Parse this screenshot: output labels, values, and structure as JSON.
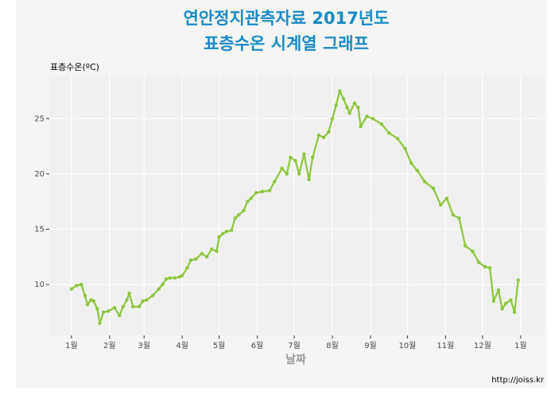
{
  "chart_data": {
    "type": "line",
    "title": "연안정지관측자료 2017년도",
    "subtitle": "표층수온 시계열 그래프",
    "y_label": "표층수온(ºC)",
    "x_label": "날짜",
    "caption": "http://joiss.kr",
    "color": "#8cc63e",
    "grid": true,
    "xlim": [
      -18,
      384.5
    ],
    "ylim": [
      5.4,
      28.9
    ],
    "xticks": [
      {
        "value": 0,
        "label": "1월"
      },
      {
        "value": 31,
        "label": "2월"
      },
      {
        "value": 59,
        "label": "3월"
      },
      {
        "value": 90,
        "label": "4월"
      },
      {
        "value": 120,
        "label": "5월"
      },
      {
        "value": 151,
        "label": "6월"
      },
      {
        "value": 181,
        "label": "7월"
      },
      {
        "value": 212,
        "label": "8월"
      },
      {
        "value": 243,
        "label": "9월"
      },
      {
        "value": 273,
        "label": "10월"
      },
      {
        "value": 304,
        "label": "11월"
      },
      {
        "value": 334,
        "label": "12월"
      },
      {
        "value": 365,
        "label": "1월"
      }
    ],
    "yticks": [
      10,
      15,
      20,
      25
    ],
    "x": [
      0,
      4,
      8,
      11,
      13,
      16,
      18,
      21,
      23,
      26,
      30,
      35,
      39,
      42,
      45,
      47,
      50,
      55,
      58,
      61,
      66,
      71,
      74,
      77,
      80,
      84,
      88,
      90,
      94,
      97,
      101,
      106,
      110,
      114,
      118,
      120,
      123,
      126,
      130,
      133,
      136,
      140,
      143,
      146,
      150,
      155,
      161,
      165,
      171,
      175,
      178,
      182,
      185,
      189,
      193,
      196,
      201,
      205,
      209,
      212,
      215,
      218,
      221,
      224,
      226,
      230,
      233,
      235,
      240,
      245,
      252,
      258,
      265,
      271,
      276,
      281,
      287,
      294,
      300,
      305,
      310,
      315,
      320,
      326,
      331,
      336,
      340,
      343,
      347,
      350,
      353,
      357,
      360,
      363
    ],
    "values": [
      9.6,
      9.9,
      10.0,
      9.0,
      8.2,
      8.6,
      8.5,
      7.8,
      6.5,
      7.5,
      7.6,
      7.9,
      7.2,
      8.0,
      8.6,
      9.2,
      8.0,
      8.0,
      8.5,
      8.6,
      9.0,
      9.6,
      10.0,
      10.5,
      10.6,
      10.6,
      10.7,
      10.8,
      11.5,
      12.2,
      12.3,
      12.8,
      12.5,
      13.2,
      13.0,
      14.3,
      14.6,
      14.8,
      14.9,
      16.0,
      16.3,
      16.7,
      17.5,
      17.8,
      18.3,
      18.4,
      18.5,
      19.3,
      20.5,
      20.0,
      21.5,
      21.2,
      20.0,
      21.8,
      19.5,
      21.5,
      23.5,
      23.3,
      23.8,
      25.0,
      26.2,
      27.5,
      26.8,
      26.0,
      25.5,
      26.4,
      26.0,
      24.3,
      25.2,
      25.0,
      24.5,
      23.7,
      23.2,
      22.3,
      21.0,
      20.3,
      19.3,
      18.7,
      17.2,
      17.8,
      16.3,
      16.0,
      13.5,
      13.0,
      12.0,
      11.6,
      11.5,
      8.5,
      9.5,
      7.8,
      8.3,
      8.6,
      7.5,
      10.4
    ]
  }
}
